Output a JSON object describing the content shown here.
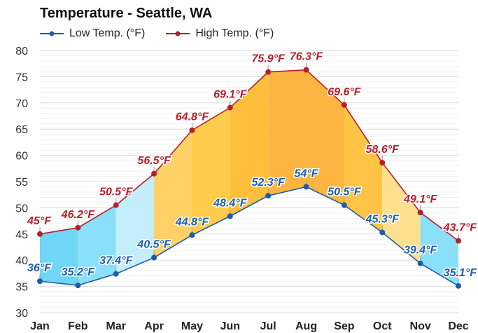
{
  "chart_data": {
    "type": "line",
    "title": "Temperature - Seattle, WA",
    "xlabel": "",
    "ylabel": "",
    "ylim": [
      30,
      80
    ],
    "yticks": [
      30,
      35,
      40,
      45,
      50,
      55,
      60,
      65,
      70,
      75,
      80
    ],
    "grid": true,
    "legend_position": "top-left",
    "categories": [
      "Jan",
      "Feb",
      "Mar",
      "Apr",
      "May",
      "Jun",
      "Jul",
      "Aug",
      "Sep",
      "Oct",
      "Nov",
      "Dec"
    ],
    "series": [
      {
        "name": "Low Temp. (°F)",
        "color": "#1a5ea8",
        "values": [
          36,
          35.2,
          37.4,
          40.5,
          44.8,
          48.4,
          52.3,
          54,
          50.5,
          45.3,
          39.4,
          35.1
        ],
        "labels": [
          "36°F",
          "35.2°F",
          "37.4°F",
          "40.5°F",
          "44.8°F",
          "48.4°F",
          "52.3°F",
          "54°F",
          "50.5°F",
          "45.3°F",
          "39.4°F",
          "35.1°F"
        ]
      },
      {
        "name": "High Temp. (°F)",
        "color": "#b5202a",
        "values": [
          45,
          46.2,
          50.5,
          56.5,
          64.8,
          69.1,
          75.9,
          76.3,
          69.6,
          58.6,
          49.1,
          43.7
        ],
        "labels": [
          "45°F",
          "46.2°F",
          "50.5°F",
          "56.5°F",
          "64.8°F",
          "69.1°F",
          "75.9°F",
          "76.3°F",
          "69.6°F",
          "58.6°F",
          "49.1°F",
          "43.7°F"
        ]
      }
    ],
    "band_colors": [
      "#6fd6f5",
      "#8be0f9",
      "#c4eefc",
      "#ffd166",
      "#ffcb4a",
      "#ffbe3c",
      "#fdb542",
      "#fdb542",
      "#ffc445",
      "#ffe08f",
      "#8be0f9",
      "#6fd6f5"
    ]
  }
}
